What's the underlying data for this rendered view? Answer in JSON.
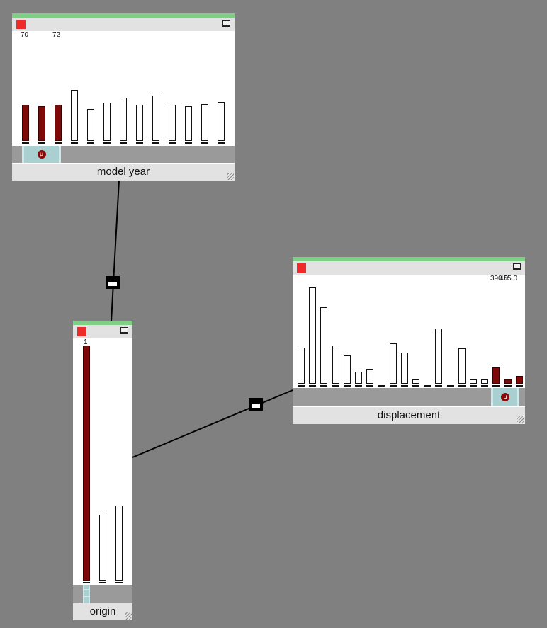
{
  "panels": {
    "model_year": {
      "label": "model year",
      "tick_labels": [
        "70",
        "72"
      ],
      "bars": [
        {
          "value": 0.62,
          "selected": true
        },
        {
          "value": 0.6,
          "selected": true
        },
        {
          "value": 0.62,
          "selected": true
        },
        {
          "value": 0.88,
          "selected": false
        },
        {
          "value": 0.55,
          "selected": false
        },
        {
          "value": 0.66,
          "selected": false
        },
        {
          "value": 0.75,
          "selected": false
        },
        {
          "value": 0.62,
          "selected": false
        },
        {
          "value": 0.78,
          "selected": false
        },
        {
          "value": 0.62,
          "selected": false
        },
        {
          "value": 0.6,
          "selected": false
        },
        {
          "value": 0.63,
          "selected": false
        },
        {
          "value": 0.67,
          "selected": false
        }
      ],
      "brush_symbol": "µ"
    },
    "origin": {
      "label": "origin",
      "tick_labels": [
        "1"
      ],
      "bars": [
        {
          "value": 1.0,
          "selected": true
        },
        {
          "value": 0.28,
          "selected": false
        },
        {
          "value": 0.32,
          "selected": false
        }
      ]
    },
    "displacement": {
      "label": "displacement",
      "tick_labels": [
        "390.0",
        "455.0"
      ],
      "bars": [
        {
          "value": 0.36,
          "selected": false
        },
        {
          "value": 0.96,
          "selected": false
        },
        {
          "value": 0.76,
          "selected": false
        },
        {
          "value": 0.38,
          "selected": false
        },
        {
          "value": 0.28,
          "selected": false
        },
        {
          "value": 0.12,
          "selected": false
        },
        {
          "value": 0.15,
          "selected": false
        },
        {
          "value": 0.0,
          "selected": false
        },
        {
          "value": 0.4,
          "selected": false
        },
        {
          "value": 0.31,
          "selected": false
        },
        {
          "value": 0.04,
          "selected": false
        },
        {
          "value": 0.0,
          "selected": false
        },
        {
          "value": 0.55,
          "selected": false
        },
        {
          "value": 0.0,
          "selected": false
        },
        {
          "value": 0.35,
          "selected": false
        },
        {
          "value": 0.04,
          "selected": false
        },
        {
          "value": 0.04,
          "selected": false
        },
        {
          "value": 0.16,
          "selected": true
        },
        {
          "value": 0.04,
          "selected": true
        },
        {
          "value": 0.08,
          "selected": true
        }
      ],
      "brush_symbol": "µ"
    }
  },
  "colors": {
    "selected_bar": "#7e0909",
    "header_accent": "#7fcf86",
    "close_button": "#ee2a2a",
    "brush": "#a9cfd1",
    "background": "#808080"
  },
  "icons": {
    "close": "close-square-icon",
    "maximize": "maximize-window-icon",
    "brush_handle": "mu-icon",
    "resize": "resize-grip-icon"
  }
}
